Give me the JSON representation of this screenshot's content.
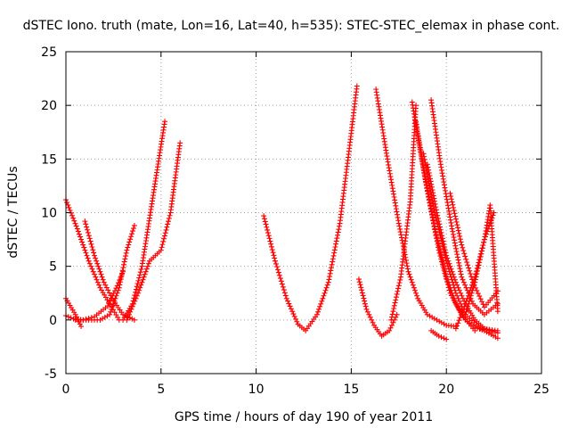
{
  "chart_data": {
    "type": "scatter",
    "title": "dSTEC Iono. truth (mate, Lon=16, Lat=40, h=535): STEC-STEC_elemax in phase cont.",
    "xlabel": "GPS time / hours of day 190 of year 2011",
    "ylabel": "dSTEC  / TECUs",
    "xlim": [
      0,
      25
    ],
    "ylim": [
      -5,
      25
    ],
    "xticks": [
      0,
      5,
      10,
      15,
      20,
      25
    ],
    "yticks": [
      -5,
      0,
      5,
      10,
      15,
      20,
      25
    ],
    "grid": true,
    "marker": "plus",
    "color": "#ff0000",
    "series": [
      {
        "x": [
          0.0,
          0.6,
          1.2,
          1.8,
          2.4,
          2.8
        ],
        "y": [
          11.2,
          8.5,
          5.5,
          3.0,
          1.2,
          0.0
        ]
      },
      {
        "x": [
          0.0,
          0.5,
          0.8
        ],
        "y": [
          2.0,
          0.5,
          -0.6
        ]
      },
      {
        "x": [
          0.0,
          0.4,
          0.9,
          1.5,
          2.2,
          2.7,
          3.0
        ],
        "y": [
          0.4,
          0.1,
          0.0,
          0.3,
          1.3,
          3.2,
          4.5
        ]
      },
      {
        "x": [
          0.5,
          1.2,
          1.8,
          2.3,
          2.8,
          3.2,
          3.6
        ],
        "y": [
          0.0,
          0.0,
          0.0,
          0.5,
          3.0,
          6.5,
          8.8
        ]
      },
      {
        "x": [
          1.0,
          1.5,
          2.0,
          2.5,
          3.0,
          3.6
        ],
        "y": [
          9.2,
          6.0,
          3.5,
          1.8,
          0.5,
          0.0
        ]
      },
      {
        "x": [
          3.0,
          3.5,
          4.0,
          4.4,
          4.8,
          5.2
        ],
        "y": [
          0.0,
          1.5,
          5.0,
          9.5,
          14.0,
          18.5
        ]
      },
      {
        "x": [
          3.2,
          3.8,
          4.4,
          5.0,
          5.5,
          6.0
        ],
        "y": [
          0.0,
          2.5,
          5.5,
          6.5,
          10.0,
          16.5
        ]
      },
      {
        "x": [
          10.4,
          11.0,
          11.6,
          12.2,
          12.6,
          13.2,
          13.8,
          14.4,
          14.9,
          15.3
        ],
        "y": [
          9.7,
          5.5,
          2.0,
          -0.4,
          -1.0,
          0.5,
          3.5,
          9.0,
          16.0,
          21.8
        ]
      },
      {
        "x": [
          15.4,
          15.8,
          16.2,
          16.6,
          17.0,
          17.4
        ],
        "y": [
          3.8,
          1.0,
          -0.5,
          -1.5,
          -1.0,
          0.5
        ]
      },
      {
        "x": [
          16.3,
          16.9,
          17.5,
          18.0,
          18.5,
          19.0,
          19.5,
          20.0,
          20.5
        ],
        "y": [
          21.5,
          15.0,
          9.0,
          4.5,
          2.0,
          0.5,
          0.0,
          -0.5,
          -0.6
        ]
      },
      {
        "x": [
          17.1,
          17.6,
          18.1,
          18.4
        ],
        "y": [
          0.0,
          4.0,
          11.0,
          20.0
        ]
      },
      {
        "x": [
          18.2,
          18.8,
          19.4,
          20.0,
          20.5,
          21.0,
          21.5,
          22.0,
          22.7
        ],
        "y": [
          20.3,
          14.0,
          8.5,
          4.0,
          1.5,
          0.0,
          -0.7,
          -1.0,
          -1.7
        ]
      },
      {
        "x": [
          18.4,
          19.0,
          19.6,
          20.2,
          20.8,
          21.5
        ],
        "y": [
          18.5,
          12.0,
          6.5,
          2.5,
          0.5,
          -1.0
        ]
      },
      {
        "x": [
          18.8,
          19.4,
          20.0,
          20.5,
          21.0,
          21.8,
          22.7
        ],
        "y": [
          15.5,
          10.0,
          5.5,
          2.5,
          0.5,
          -0.8,
          -1.0
        ]
      },
      {
        "x": [
          19.0,
          19.5,
          20.0,
          20.5,
          21.0,
          21.5,
          22.0,
          22.7
        ],
        "y": [
          14.5,
          10.0,
          6.0,
          3.5,
          1.5,
          0.0,
          -0.8,
          -1.2
        ]
      },
      {
        "x": [
          19.2,
          19.7,
          20.3,
          20.8,
          21.4,
          22.0,
          22.7
        ],
        "y": [
          20.5,
          14.5,
          8.5,
          4.0,
          1.5,
          0.5,
          1.5
        ]
      },
      {
        "x": [
          19.2,
          19.6,
          20.0
        ],
        "y": [
          -1.0,
          -1.5,
          -1.8
        ]
      },
      {
        "x": [
          20.2,
          20.8,
          21.4,
          22.0,
          22.7
        ],
        "y": [
          11.8,
          7.0,
          3.5,
          1.2,
          2.7
        ]
      },
      {
        "x": [
          20.5,
          21.0,
          21.5,
          22.0,
          22.5
        ],
        "y": [
          -0.8,
          1.5,
          4.0,
          7.5,
          10.0
        ]
      },
      {
        "x": [
          21.0,
          21.5,
          22.0,
          22.3,
          22.7
        ],
        "y": [
          0.5,
          3.5,
          7.5,
          10.7,
          0.8
        ]
      }
    ]
  }
}
